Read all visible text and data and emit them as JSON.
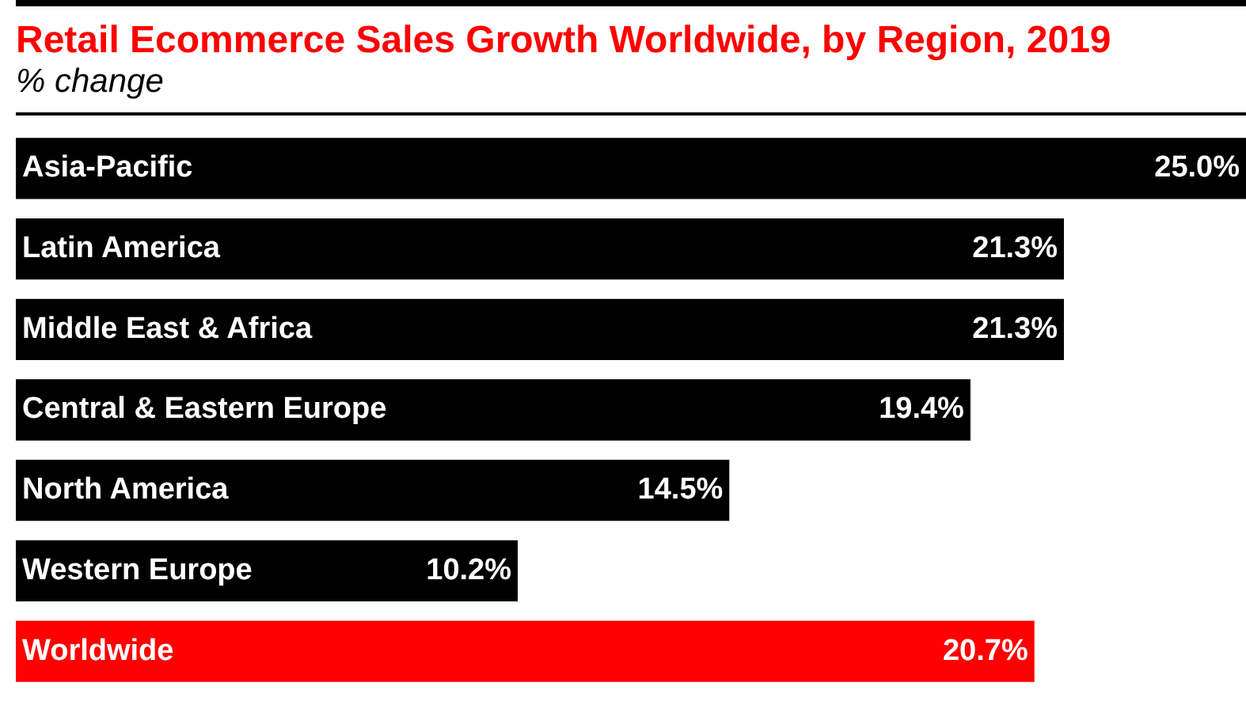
{
  "chart_data": {
    "type": "bar",
    "orientation": "horizontal",
    "title": "Retail Ecommerce Sales Growth Worldwide, by Region, 2019",
    "subtitle": "% change",
    "categories": [
      "Asia-Pacific",
      "Latin America",
      "Middle East & Africa",
      "Central & Eastern Europe",
      "North America",
      "Western Europe",
      "Worldwide"
    ],
    "values": [
      25.0,
      21.3,
      21.3,
      19.4,
      14.5,
      10.2,
      20.7
    ],
    "value_labels": [
      "25.0%",
      "21.3%",
      "21.3%",
      "19.4%",
      "14.5%",
      "10.2%",
      "20.7%"
    ],
    "colors": [
      "#000000",
      "#000000",
      "#000000",
      "#000000",
      "#000000",
      "#000000",
      "#ff0000"
    ]
  }
}
